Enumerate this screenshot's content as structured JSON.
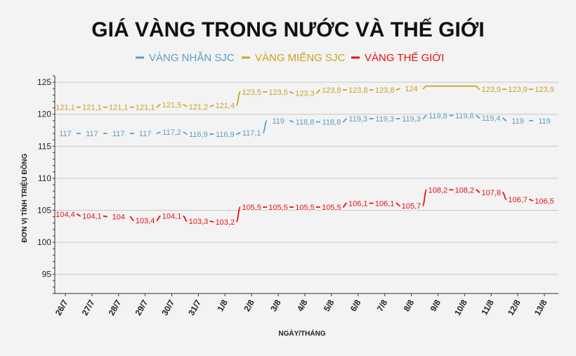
{
  "chart_data": {
    "type": "line",
    "title": "GIÁ VÀNG TRONG NƯỚC VÀ THẾ GIỚI",
    "xlabel": "NGÀY/THÁNG",
    "ylabel": "ĐƠN VỊ TÍNH TRIỆU ĐỒNG",
    "ylim": [
      92,
      126
    ],
    "yticks": [
      "95",
      "100",
      "105",
      "110",
      "115",
      "120",
      "125"
    ],
    "categories": [
      "26/7",
      "27/7",
      "28/7",
      "29/7",
      "30/7",
      "31/7",
      "1/8",
      "2/8",
      "3/8",
      "4/8",
      "5/8",
      "6/8",
      "7/8",
      "8/8",
      "9/8",
      "10/8",
      "11/8",
      "12/8",
      "13/8"
    ],
    "grid": true,
    "legend_position": "top",
    "series": [
      {
        "name": "VÀNG NHẪN SJC",
        "color": "#5b9ec4",
        "values": [
          117,
          117,
          117,
          117,
          117.2,
          116.9,
          116.9,
          117.1,
          119,
          118.8,
          118.8,
          119.3,
          119.3,
          119.3,
          119.8,
          119.8,
          119.4,
          119,
          119
        ],
        "labels": [
          "117",
          "117",
          "117",
          "117",
          "117,2",
          "116,9",
          "116,9",
          "117,1",
          "119",
          "118,8",
          "118,8",
          "119,3",
          "119,3",
          "119,3",
          "119,8",
          "119,8",
          "119,4",
          "119",
          "119"
        ]
      },
      {
        "name": "VÀNG MIẾNG SJC",
        "color": "#c9a227",
        "values": [
          121.1,
          121.1,
          121.1,
          121.1,
          121.5,
          121.2,
          121.4,
          123.5,
          123.5,
          123.3,
          123.8,
          123.8,
          123.8,
          124,
          124.4,
          124.4,
          123.9,
          123.9,
          123.9
        ],
        "labels": [
          "121,1",
          "121,1",
          "121,1",
          "121,1",
          "121,5",
          "121,2",
          "121,4",
          "123,5",
          "123,5",
          "123,3",
          "123,8",
          "123,8",
          "123,8",
          "124",
          "",
          "",
          "123,9",
          "123,9",
          "123,9"
        ]
      },
      {
        "name": "VÀNG THẾ GIỚI",
        "color": "#e81010",
        "values": [
          104.4,
          104.1,
          104,
          103.4,
          104.1,
          103.3,
          103.2,
          105.5,
          105.5,
          105.5,
          105.5,
          106.1,
          106.1,
          105.7,
          108.2,
          108.2,
          107.8,
          106.7,
          106.5
        ],
        "labels": [
          "104,4",
          "104,1",
          "104",
          "103,4",
          "104,1",
          "103,3",
          "103,2",
          "105,5",
          "105,5",
          "105,5",
          "105,5",
          "106,1",
          "106,1",
          "105,7",
          "108,2",
          "108,2",
          "107,8",
          "106,7",
          "106,5"
        ]
      }
    ]
  }
}
